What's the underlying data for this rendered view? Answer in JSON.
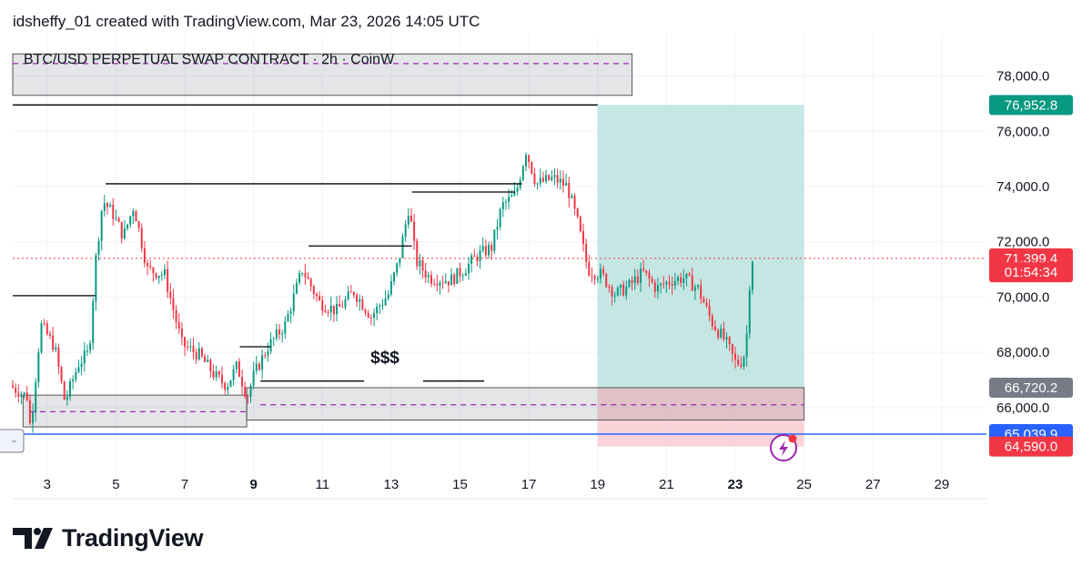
{
  "header": {
    "attribution": "idsheffy_01 created with TradingView.com, Mar 23, 2026 14:05 UTC"
  },
  "symbol_label": "BTC/USD PERPETUAL SWAP CONTRACT · 2h · CoinW",
  "annotation_label": "$$$",
  "brand": {
    "name": "TradingView"
  },
  "colors": {
    "up": "#089981",
    "down": "#f23645",
    "badge_green": "#089981",
    "badge_red": "#f23645",
    "badge_gray": "#787b86",
    "badge_blue": "#2962ff",
    "position_profit": "#b2dfdb",
    "position_loss": "#f8c4cc",
    "grid": "#f0f3fa",
    "level_line": "#000000",
    "dashed_line": "#9c27b0"
  },
  "chart_data": {
    "type": "candlestick",
    "timeframe": "2h",
    "x_ticks": [
      {
        "label": "3",
        "day": 3,
        "bold": false
      },
      {
        "label": "5",
        "day": 5,
        "bold": false
      },
      {
        "label": "7",
        "day": 7,
        "bold": false
      },
      {
        "label": "9",
        "day": 9,
        "bold": true
      },
      {
        "label": "11",
        "day": 11,
        "bold": false
      },
      {
        "label": "13",
        "day": 13,
        "bold": false
      },
      {
        "label": "15",
        "day": 15,
        "bold": false
      },
      {
        "label": "17",
        "day": 17,
        "bold": false
      },
      {
        "label": "19",
        "day": 19,
        "bold": false
      },
      {
        "label": "21",
        "day": 21,
        "bold": false
      },
      {
        "label": "23",
        "day": 23,
        "bold": true
      },
      {
        "label": "25",
        "day": 25,
        "bold": false
      },
      {
        "label": "27",
        "day": 27,
        "bold": false
      },
      {
        "label": "29",
        "day": 29,
        "bold": false
      }
    ],
    "y_ticks": [
      "78,000.0",
      "76,000.0",
      "74,000.0",
      "72,000.0",
      "70,000.0",
      "68,000.0",
      "66,000.0"
    ],
    "y_tick_values": [
      78000,
      76000,
      74000,
      72000,
      70000,
      68000,
      66000
    ],
    "x_range": [
      2.0,
      30.3
    ],
    "y_range": [
      62700,
      79500
    ],
    "price_path": [
      [
        2.0,
        66800
      ],
      [
        2.5,
        66400
      ],
      [
        2.6,
        65200
      ],
      [
        2.9,
        69000
      ],
      [
        3.3,
        68200
      ],
      [
        3.6,
        66200
      ],
      [
        4.0,
        67600
      ],
      [
        4.3,
        68000
      ],
      [
        4.5,
        71400
      ],
      [
        4.7,
        73500
      ],
      [
        5.0,
        73000
      ],
      [
        5.3,
        72200
      ],
      [
        5.6,
        73300
      ],
      [
        6.0,
        71000
      ],
      [
        6.5,
        70800
      ],
      [
        7.0,
        68300
      ],
      [
        7.5,
        67900
      ],
      [
        8.0,
        67100
      ],
      [
        8.3,
        66800
      ],
      [
        8.6,
        67500
      ],
      [
        8.9,
        66400
      ],
      [
        9.1,
        67200
      ],
      [
        9.5,
        68200
      ],
      [
        10.0,
        69000
      ],
      [
        10.5,
        71000
      ],
      [
        11.0,
        69800
      ],
      [
        11.5,
        69500
      ],
      [
        12.0,
        70200
      ],
      [
        12.5,
        69300
      ],
      [
        13.0,
        70100
      ],
      [
        13.3,
        71300
      ],
      [
        13.6,
        73300
      ],
      [
        13.8,
        71300
      ],
      [
        14.2,
        70700
      ],
      [
        14.8,
        70600
      ],
      [
        15.2,
        71000
      ],
      [
        15.6,
        71500
      ],
      [
        16.0,
        71800
      ],
      [
        16.3,
        73300
      ],
      [
        16.7,
        73700
      ],
      [
        17.0,
        75300
      ],
      [
        17.3,
        74100
      ],
      [
        17.8,
        74300
      ],
      [
        18.2,
        74000
      ],
      [
        18.5,
        72700
      ],
      [
        18.8,
        71000
      ],
      [
        19.2,
        70800
      ],
      [
        19.6,
        70100
      ],
      [
        20.0,
        70400
      ],
      [
        20.4,
        70900
      ],
      [
        20.8,
        70300
      ],
      [
        21.2,
        70600
      ],
      [
        21.6,
        70700
      ],
      [
        22.0,
        70300
      ],
      [
        22.4,
        69100
      ],
      [
        22.8,
        68400
      ],
      [
        23.1,
        67600
      ],
      [
        23.3,
        67700
      ],
      [
        23.4,
        68300
      ],
      [
        23.5,
        70500
      ],
      [
        23.55,
        71399.4
      ]
    ],
    "levels": [
      {
        "price": 76952.8,
        "from_day": 2.0,
        "to_day": 19.0
      },
      {
        "price": 74100,
        "from_day": 4.7,
        "to_day": 16.8
      },
      {
        "price": 73800,
        "from_day": 13.6,
        "to_day": 16.6
      },
      {
        "price": 71850,
        "from_day": 10.6,
        "to_day": 13.6
      },
      {
        "price": 70050,
        "from_day": 2.0,
        "to_day": 4.4
      },
      {
        "price": 68200,
        "from_day": 8.6,
        "to_day": 9.5
      },
      {
        "price": 66960,
        "from_day": 9.2,
        "to_day": 15.7,
        "label": "$$$"
      }
    ],
    "zones": [
      {
        "type": "demand",
        "low": 65300,
        "high": 66450,
        "from_day": 2.3,
        "to_day": 8.8
      },
      {
        "type": "demand",
        "low": 65550,
        "high": 66720.2,
        "from_day": 8.8,
        "to_day": 25.0
      },
      {
        "type": "symbol-box",
        "low": 77300,
        "high": 78800,
        "from_day": 2.0,
        "to_day": 20.0
      }
    ],
    "dashed_levels": [
      {
        "price": 78450,
        "from_day": 2.0,
        "to_day": 20.0
      },
      {
        "price": 65850,
        "from_day": 2.5,
        "to_day": 8.8
      },
      {
        "price": 66100,
        "from_day": 9.2,
        "to_day": 25.0
      }
    ],
    "position": {
      "type": "long",
      "from_day": 19.0,
      "to_day": 25.0,
      "entry": 66720.2,
      "target": 76952.8,
      "stop": 64590.0
    },
    "support_line": {
      "price": 65039.9,
      "color": "#2962ff"
    },
    "last_price": 71399.4,
    "countdown": "01:54:34",
    "price_badges": [
      {
        "label": "76,952.8",
        "price": 76952.8,
        "color": "#089981"
      },
      {
        "label": "71,399.4",
        "price": 71399.4,
        "color": "#f23645"
      },
      {
        "label": "01:54:34",
        "price": 70900,
        "color": "#f23645"
      },
      {
        "label": "66,720.2",
        "price": 66720.2,
        "color": "#787b86"
      },
      {
        "label": "65,039.9",
        "price": 65039.9,
        "color": "#2962ff"
      },
      {
        "label": "64,590.0",
        "price": 64590.0,
        "color": "#f23645"
      }
    ]
  }
}
